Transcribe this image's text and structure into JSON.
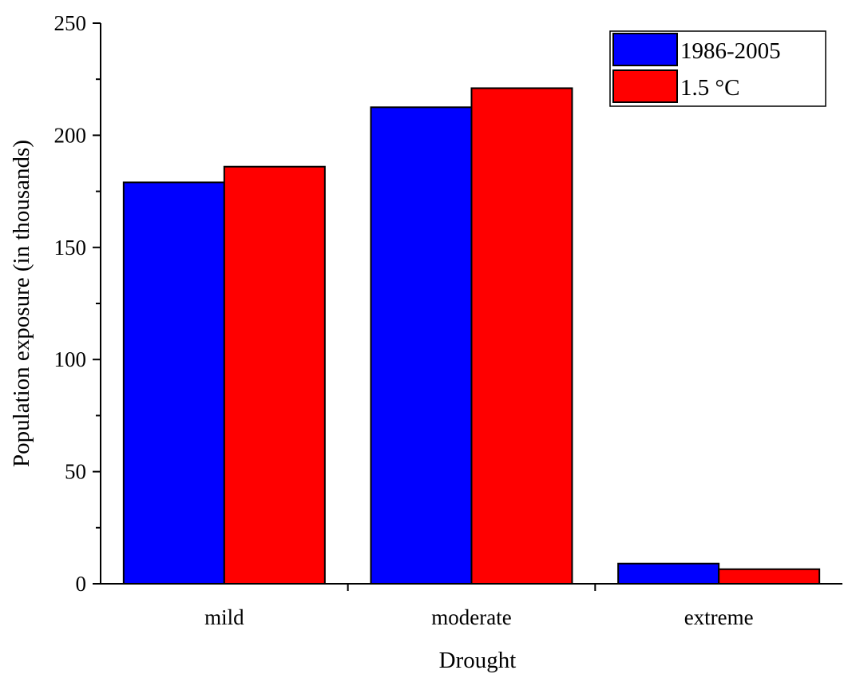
{
  "chart_data": {
    "type": "bar",
    "title": "",
    "xlabel": "Drought",
    "ylabel": "Population exposure (in thousands)",
    "categories": [
      "mild",
      "moderate",
      "extreme"
    ],
    "series": [
      {
        "name": "1986-2005",
        "color": "#0000FF",
        "values": [
          179,
          212.5,
          9
        ]
      },
      {
        "name": "1.5 °C",
        "color": "#FF0000",
        "values": [
          186,
          221,
          6.5
        ]
      }
    ],
    "ylim": [
      0,
      250
    ],
    "yticks": [
      "0",
      "50",
      "100",
      "150",
      "200",
      "250"
    ],
    "grid": false,
    "legend_position": "top-right"
  }
}
